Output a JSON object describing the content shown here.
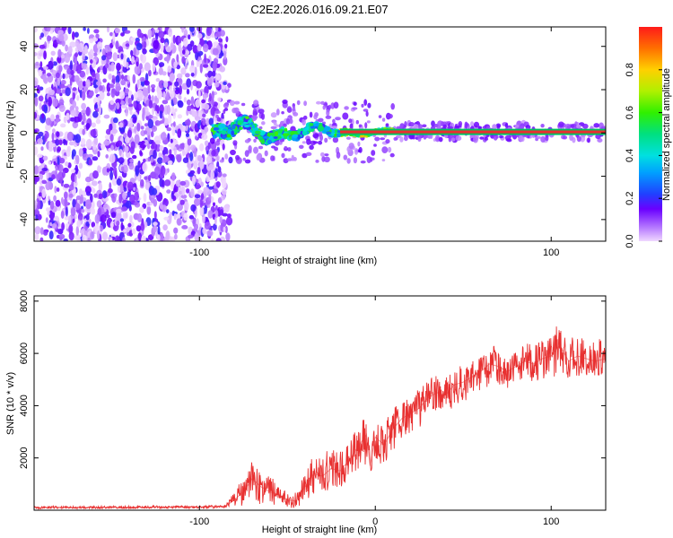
{
  "title": "C2E2.2026.016.09.21.E07",
  "colors": {
    "signal": "#e83030",
    "line": "#e83030",
    "carrier": "#00c060",
    "background": "#ffffff",
    "axis": "#000000"
  },
  "chart_data": [
    {
      "type": "heatmap",
      "title": "C2E2.2026.016.09.21.E07",
      "xlabel": "Height of straight line (km)",
      "ylabel": "Frequency (Hz)",
      "xlim": [
        -194,
        131
      ],
      "ylim": [
        -50,
        49
      ],
      "xticks": [
        -100,
        0,
        100
      ],
      "xtick_labels": [
        "-100",
        "",
        "100"
      ],
      "yticks": [
        -40,
        -20,
        0,
        20,
        40
      ],
      "ytick_labels": [
        "-40",
        "-20",
        "0",
        "20",
        "40"
      ],
      "noise_region_x": [
        -194,
        -86
      ],
      "carrier_frequency_hz": 0.5,
      "signal_onset_km": -92,
      "colorbar": {
        "label": "Normalized spectral amplitude",
        "range": [
          0,
          1
        ],
        "ticks": [
          0,
          0.2,
          0.4,
          0.6,
          0.8
        ],
        "tick_labels": [
          "0.0",
          "0.2",
          "0.4",
          "0.6",
          "0.8"
        ],
        "colormap": "hsv-reversed (0 = light violet, 0.2 = blue, 0.4 = cyan, 0.6 = green, 0.8 = yellow/orange, 1.0 = red)"
      }
    },
    {
      "type": "line",
      "title": "",
      "xlabel": "Height of straight line (km)",
      "ylabel": "SNR (10 * v/v)",
      "xlim": [
        -194,
        131
      ],
      "ylim": [
        0,
        8200
      ],
      "xticks": [
        -100,
        0,
        100
      ],
      "xtick_labels": [
        "-100",
        "0",
        "100"
      ],
      "yticks": [
        2000,
        4000,
        6000,
        8000
      ],
      "ytick_labels": [
        "2000",
        "4000",
        "6000",
        "8000"
      ],
      "series": [
        {
          "name": "SNR",
          "x": [
            -194,
            -150,
            -100,
            -85,
            -80,
            -75,
            -70,
            -65,
            -60,
            -55,
            -50,
            -45,
            -40,
            -35,
            -30,
            -25,
            -20,
            -15,
            -10,
            -5,
            -3,
            0,
            5,
            10,
            15,
            20,
            25,
            30,
            35,
            40,
            45,
            50,
            55,
            60,
            65,
            70,
            75,
            80,
            85,
            90,
            95,
            100,
            105,
            110,
            115,
            120,
            125,
            131
          ],
          "y": [
            100,
            110,
            120,
            150,
            400,
            700,
            1200,
            900,
            700,
            600,
            400,
            350,
            900,
            1400,
            1300,
            1600,
            1500,
            1900,
            2400,
            2900,
            1700,
            2800,
            2500,
            3100,
            3500,
            3700,
            3900,
            4300,
            4500,
            4400,
            4800,
            4900,
            5100,
            5300,
            5600,
            5500,
            5300,
            5500,
            5700,
            5600,
            5800,
            5900,
            6300,
            5700,
            5900,
            5800,
            5700,
            5800
          ],
          "spread": [
            60,
            60,
            60,
            80,
            400,
            700,
            900,
            800,
            600,
            500,
            400,
            400,
            700,
            900,
            900,
            900,
            900,
            1000,
            1100,
            1200,
            500,
            1000,
            900,
            1000,
            900,
            900,
            900,
            800,
            800,
            800,
            800,
            800,
            800,
            800,
            900,
            800,
            800,
            800,
            900,
            900,
            900,
            1000,
            1200,
            1000,
            900,
            900,
            900,
            900
          ]
        }
      ]
    }
  ]
}
